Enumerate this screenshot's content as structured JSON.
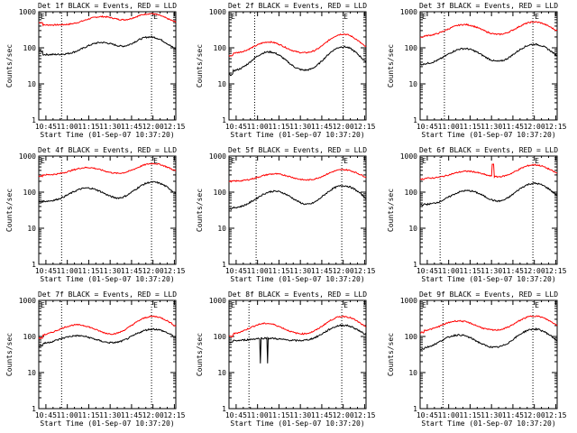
{
  "chart_data": {
    "type": "line",
    "layout": "3x3 grid",
    "shared": {
      "xlabel": "Start Time (01-Sep-07 10:37:20)",
      "ylabel": "Counts/sec",
      "x_tick_labels": [
        "10:45",
        "11:00",
        "11:15",
        "11:30",
        "11:45",
        "12:00",
        "12:15"
      ],
      "x_ticks_min": [
        45,
        60,
        75,
        90,
        105,
        120,
        135
      ],
      "xlim_min": [
        40,
        136
      ],
      "y_scale": "log",
      "ylim": [
        1,
        1000
      ],
      "y_tick_labels": [
        "1",
        "10",
        "100",
        "1000"
      ],
      "y_ticks": [
        1,
        10,
        100,
        1000
      ],
      "e_marker_label": "E",
      "e_marker_min": 119,
      "series_names": [
        "Events",
        "LLD"
      ],
      "series_colors": {
        "Events": "#000000",
        "LLD": "#ff0000"
      },
      "curve_model": "bimodal peaks at t1 and t2 (minutes after 10:00), value = base + a1*bump(t1,w) + a2*bump(t2,w)"
    },
    "panels": [
      {
        "title": "Det 1f BLACK = Events, RED = LLD",
        "dotted_lines_min": [
          56,
          119
        ],
        "t1": 84,
        "t2": 118,
        "w": 10,
        "lld": {
          "base": 430,
          "a1": 300,
          "a2": 450,
          "start": 500
        },
        "events": {
          "base": 65,
          "a1": 75,
          "a2": 135,
          "start": 80
        }
      },
      {
        "title": "Det 2f BLACK = Events, RED = LLD",
        "dotted_lines_min": [
          58,
          120
        ],
        "t1": 68,
        "t2": 120,
        "w": 9,
        "lld": {
          "base": 70,
          "a1": 75,
          "a2": 170,
          "start": 60
        },
        "events": {
          "base": 22,
          "a1": 55,
          "a2": 85,
          "start": 18
        }
      },
      {
        "title": "Det 3f BLACK = Events, RED = LLD",
        "dotted_lines_min": [
          57,
          119
        ],
        "t1": 71,
        "t2": 120,
        "w": 10,
        "lld": {
          "base": 210,
          "a1": 230,
          "a2": 310,
          "start": 200
        },
        "events": {
          "base": 35,
          "a1": 60,
          "a2": 90,
          "start": 35
        }
      },
      {
        "title": "Det 4f BLACK = Events, RED = LLD",
        "dotted_lines_min": [
          56,
          119
        ],
        "t1": 74,
        "t2": 120,
        "w": 10,
        "lld": {
          "base": 300,
          "a1": 180,
          "a2": 320,
          "start": 280
        },
        "events": {
          "base": 55,
          "a1": 75,
          "a2": 135,
          "start": 55
        }
      },
      {
        "title": "Det 5f BLACK = Events, RED = LLD",
        "dotted_lines_min": [
          59,
          119
        ],
        "t1": 72,
        "t2": 120,
        "w": 10,
        "lld": {
          "base": 200,
          "a1": 120,
          "a2": 220,
          "start": 200
        },
        "events": {
          "base": 36,
          "a1": 70,
          "a2": 115,
          "start": 35
        }
      },
      {
        "title": "Det 6f BLACK = Events, RED = LLD",
        "dotted_lines_min": [
          54,
          119
        ],
        "t1": 73,
        "t2": 120,
        "w": 10,
        "lld": {
          "base": 240,
          "a1": 140,
          "a2": 330,
          "start": 230
        },
        "events": {
          "base": 45,
          "a1": 65,
          "a2": 130,
          "start": 45
        },
        "spike_min": 91
      },
      {
        "title": "Det 7f BLACK = Events, RED = LLD",
        "dotted_lines_min": [
          56,
          119
        ],
        "t1": 67,
        "t2": 120,
        "w": 11,
        "lld": {
          "base": 100,
          "a1": 110,
          "a2": 260,
          "start": 90
        },
        "events": {
          "base": 60,
          "a1": 45,
          "a2": 100,
          "start": 55
        }
      },
      {
        "title": "Det 8f BLACK = Events, RED = LLD",
        "dotted_lines_min": [
          54,
          119
        ],
        "t1": 66,
        "t2": 120,
        "w": 10,
        "lld": {
          "base": 110,
          "a1": 120,
          "a2": 250,
          "start": 100
        },
        "events": {
          "base": 75,
          "a1": 15,
          "a2": 130,
          "start": 70
        },
        "dips": [
          {
            "min": 62,
            "value": 18
          },
          {
            "min": 67,
            "value": 18
          }
        ]
      },
      {
        "title": "Det 9f BLACK = Events, RED = LLD",
        "dotted_lines_min": [
          56,
          119
        ],
        "t1": 67,
        "t2": 120,
        "w": 10,
        "lld": {
          "base": 140,
          "a1": 130,
          "a2": 230,
          "start": 130
        },
        "events": {
          "base": 45,
          "a1": 65,
          "a2": 115,
          "start": 45
        }
      }
    ]
  }
}
